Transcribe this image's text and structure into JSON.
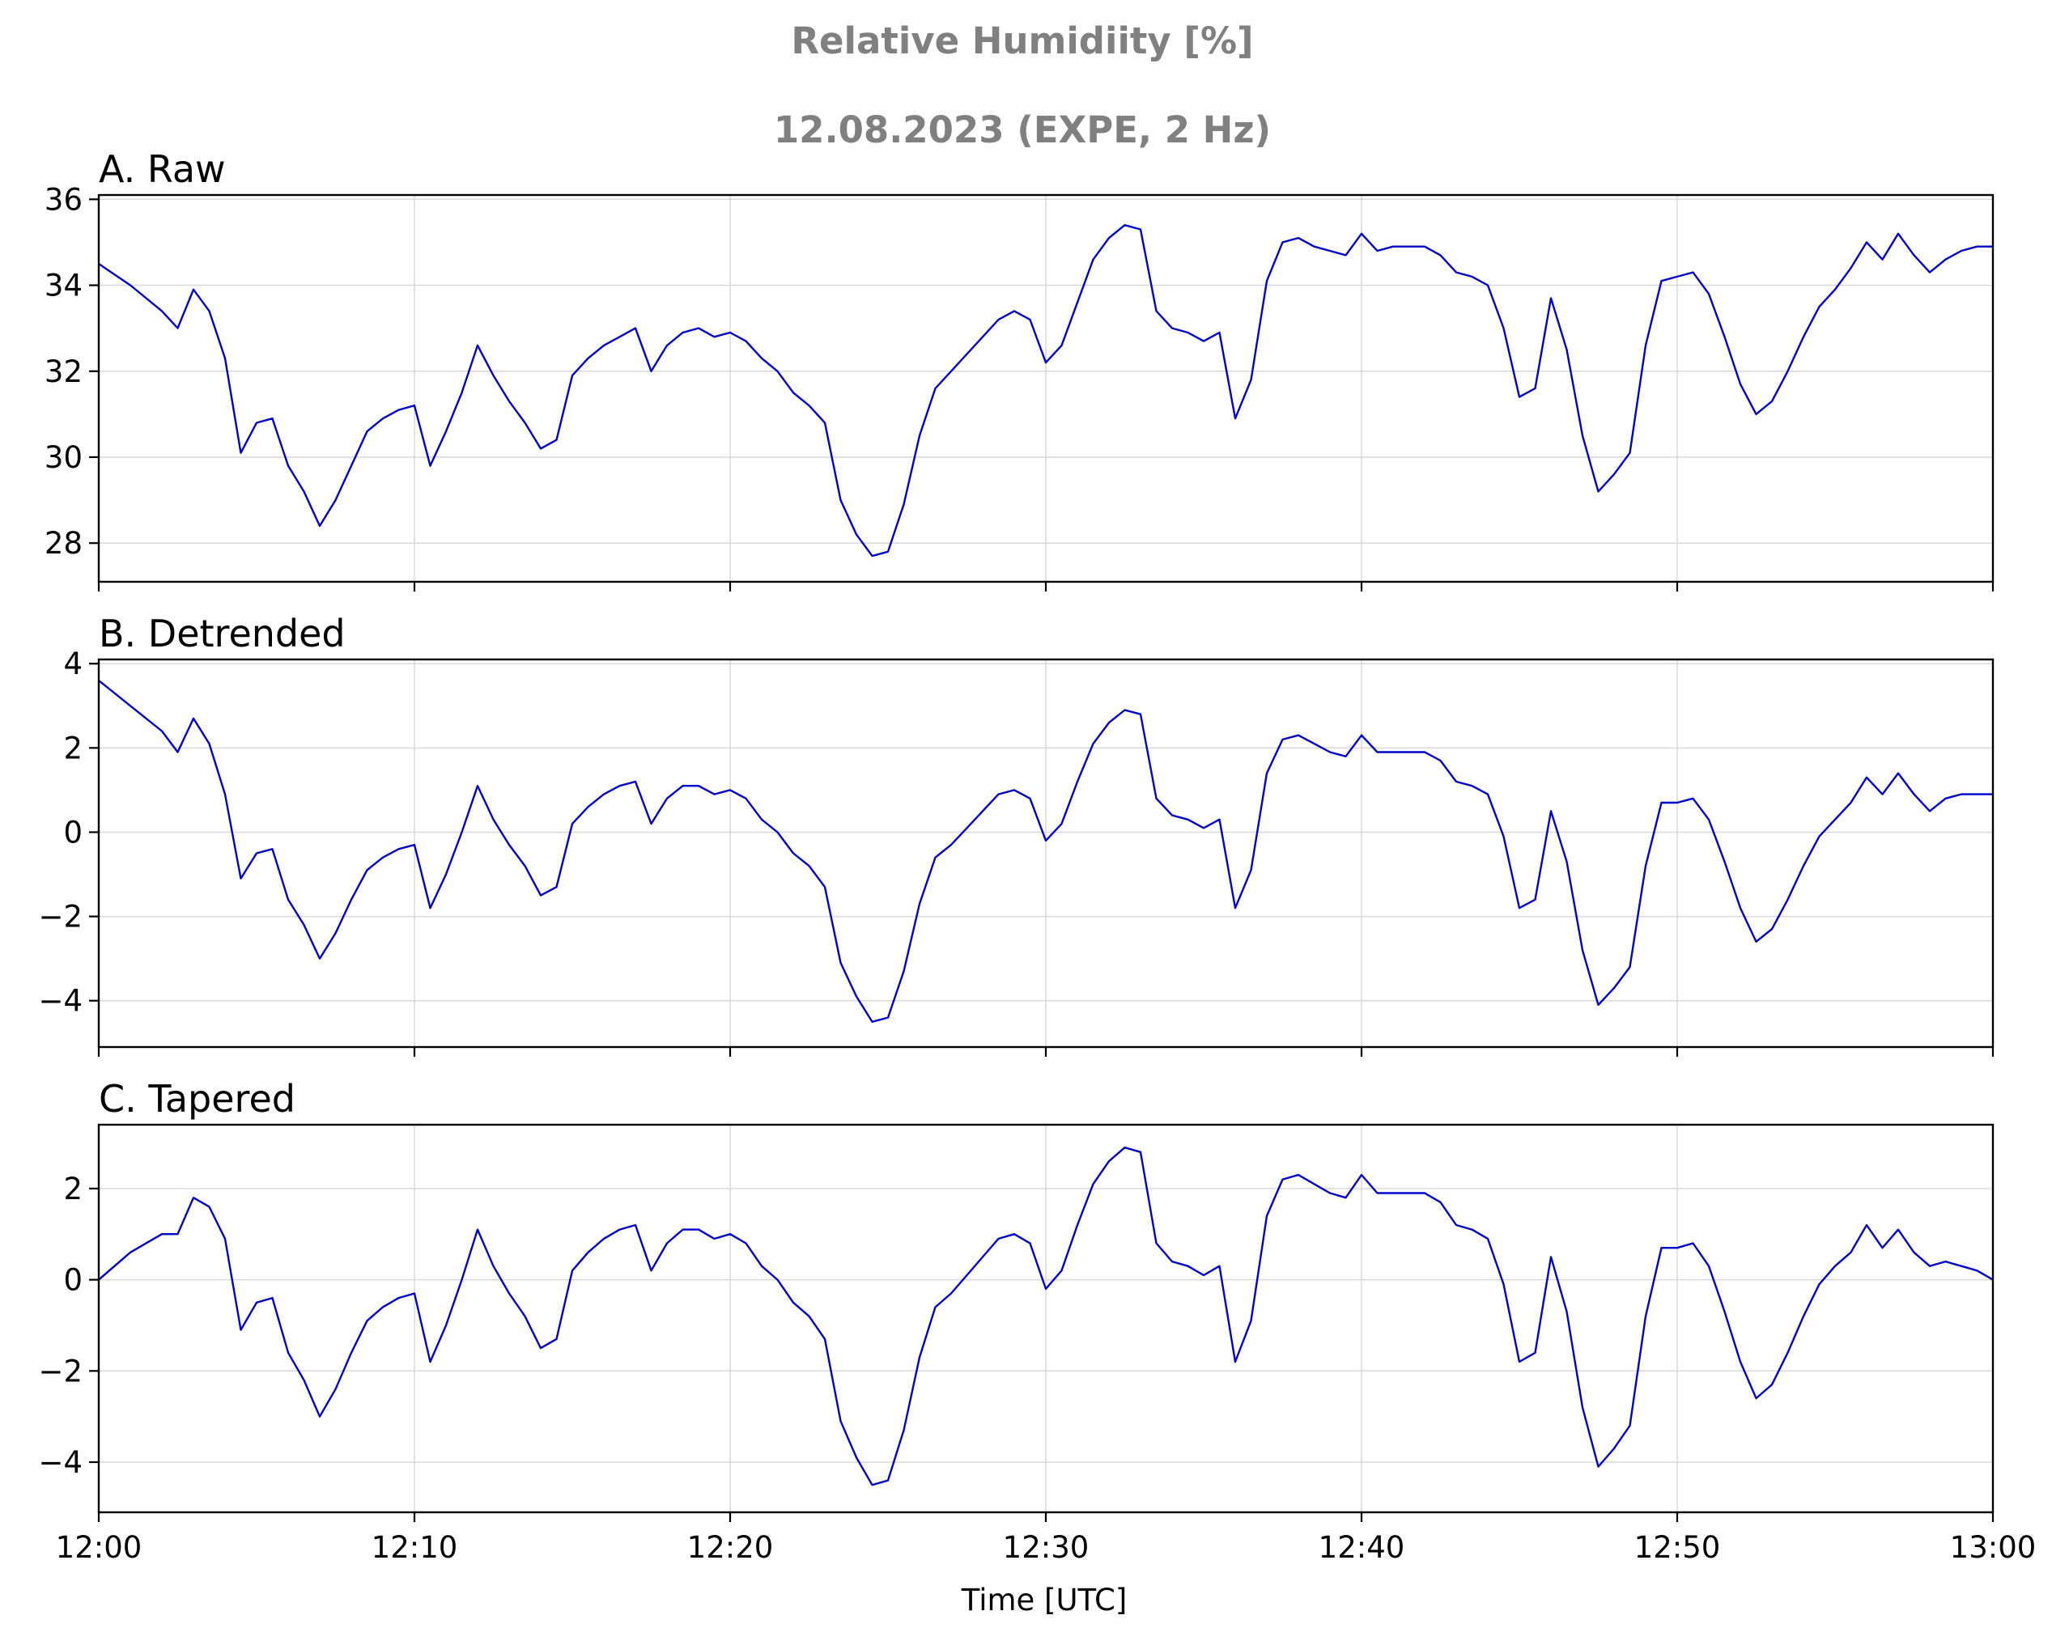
{
  "figure": {
    "title_line1": "Relative Humidiity [%]",
    "title_line2": "12.08.2023 (EXPE, 2 Hz)",
    "xlabel": "Time [UTC]",
    "line_color": "#0000cc",
    "grid_color": "#d9d9d9"
  },
  "chart_data": [
    {
      "type": "line",
      "title": "A. Raw",
      "ylim": [
        27.1,
        36.1
      ],
      "yticks": [
        28,
        30,
        32,
        34,
        36
      ],
      "xlim": [
        "12:00",
        "13:00"
      ],
      "xticks": [
        "12:00",
        "12:10",
        "12:20",
        "12:30",
        "12:40",
        "12:50",
        "13:00"
      ],
      "show_xtick_labels": false,
      "grid": true,
      "series": [
        {
          "x": [
            "12:00:00",
            "12:01:00",
            "12:02:00",
            "12:02:30",
            "12:03:00",
            "12:03:30",
            "12:04:00",
            "12:04:30",
            "12:05:00",
            "12:05:30",
            "12:06:00",
            "12:06:30",
            "12:07:00",
            "12:07:30",
            "12:08:00",
            "12:08:30",
            "12:09:00",
            "12:09:30",
            "12:10:00",
            "12:10:30",
            "12:11:00",
            "12:11:30",
            "12:12:00",
            "12:12:30",
            "12:13:00",
            "12:13:30",
            "12:14:00",
            "12:14:30",
            "12:15:00",
            "12:15:30",
            "12:16:00",
            "12:16:30",
            "12:17:00",
            "12:17:30",
            "12:18:00",
            "12:18:30",
            "12:19:00",
            "12:19:30",
            "12:20:00",
            "12:20:30",
            "12:21:00",
            "12:21:30",
            "12:22:00",
            "12:22:30",
            "12:23:00",
            "12:23:30",
            "12:24:00",
            "12:24:30",
            "12:25:00",
            "12:25:30",
            "12:26:00",
            "12:26:30",
            "12:27:00",
            "12:27:30",
            "12:28:00",
            "12:28:30",
            "12:29:00",
            "12:29:30",
            "12:30:00",
            "12:30:30",
            "12:31:00",
            "12:31:30",
            "12:32:00",
            "12:32:30",
            "12:33:00",
            "12:33:30",
            "12:34:00",
            "12:34:30",
            "12:35:00",
            "12:35:30",
            "12:36:00",
            "12:36:30",
            "12:37:00",
            "12:37:30",
            "12:38:00",
            "12:38:30",
            "12:39:00",
            "12:39:30",
            "12:40:00",
            "12:40:30",
            "12:41:00",
            "12:41:30",
            "12:42:00",
            "12:42:30",
            "12:43:00",
            "12:43:30",
            "12:44:00",
            "12:44:30",
            "12:45:00",
            "12:45:30",
            "12:46:00",
            "12:46:30",
            "12:47:00",
            "12:47:30",
            "12:48:00",
            "12:48:30",
            "12:49:00",
            "12:49:30",
            "12:50:00",
            "12:50:30",
            "12:51:00",
            "12:51:30",
            "12:52:00",
            "12:52:30",
            "12:53:00",
            "12:53:30",
            "12:54:00",
            "12:54:30",
            "12:55:00",
            "12:55:30",
            "12:56:00",
            "12:56:30",
            "12:57:00",
            "12:57:30",
            "12:58:00",
            "12:58:30",
            "12:59:00",
            "12:59:30",
            "13:00:00"
          ],
          "y": [
            34.5,
            34.0,
            33.4,
            33.0,
            33.9,
            33.4,
            32.3,
            30.1,
            30.8,
            30.9,
            29.8,
            29.2,
            28.4,
            29.0,
            29.8,
            30.6,
            30.9,
            31.1,
            31.2,
            29.8,
            30.6,
            31.5,
            32.6,
            31.9,
            31.3,
            30.8,
            30.2,
            30.4,
            31.9,
            32.3,
            32.6,
            32.8,
            33.0,
            32.0,
            32.6,
            32.9,
            33.0,
            32.8,
            32.9,
            32.7,
            32.3,
            32.0,
            31.5,
            31.2,
            30.8,
            29.0,
            28.2,
            27.7,
            27.8,
            28.9,
            30.5,
            31.6,
            32.0,
            32.4,
            32.8,
            33.2,
            33.4,
            33.2,
            32.2,
            32.6,
            33.6,
            34.6,
            35.1,
            35.4,
            35.3,
            33.4,
            33.0,
            32.9,
            32.7,
            32.9,
            30.9,
            31.8,
            34.1,
            35.0,
            35.1,
            34.9,
            34.8,
            34.7,
            35.2,
            34.8,
            34.9,
            34.9,
            34.9,
            34.7,
            34.3,
            34.2,
            34.0,
            33.0,
            31.4,
            31.6,
            33.7,
            32.5,
            30.5,
            29.2,
            29.6,
            30.1,
            32.6,
            34.1,
            34.2,
            34.3,
            33.8,
            32.8,
            31.7,
            31.0,
            31.3,
            32.0,
            32.8,
            33.5,
            33.9,
            34.4,
            35.0,
            34.6,
            35.2,
            34.7,
            34.3,
            34.6,
            34.8,
            34.9,
            34.9
          ]
        }
      ]
    },
    {
      "type": "line",
      "title": "B. Detrended",
      "ylim": [
        -5.1,
        4.1
      ],
      "yticks": [
        -4,
        -2,
        0,
        2,
        4
      ],
      "yticklabels": [
        "−4",
        "−2",
        "0",
        "2",
        "4"
      ],
      "xlim": [
        "12:00",
        "13:00"
      ],
      "xticks": [
        "12:00",
        "12:10",
        "12:20",
        "12:30",
        "12:40",
        "12:50",
        "13:00"
      ],
      "show_xtick_labels": false,
      "grid": true,
      "series": [
        {
          "x": [
            "12:00:00",
            "12:01:00",
            "12:02:00",
            "12:02:30",
            "12:03:00",
            "12:03:30",
            "12:04:00",
            "12:04:30",
            "12:05:00",
            "12:05:30",
            "12:06:00",
            "12:06:30",
            "12:07:00",
            "12:07:30",
            "12:08:00",
            "12:08:30",
            "12:09:00",
            "12:09:30",
            "12:10:00",
            "12:10:30",
            "12:11:00",
            "12:11:30",
            "12:12:00",
            "12:12:30",
            "12:13:00",
            "12:13:30",
            "12:14:00",
            "12:14:30",
            "12:15:00",
            "12:15:30",
            "12:16:00",
            "12:16:30",
            "12:17:00",
            "12:17:30",
            "12:18:00",
            "12:18:30",
            "12:19:00",
            "12:19:30",
            "12:20:00",
            "12:20:30",
            "12:21:00",
            "12:21:30",
            "12:22:00",
            "12:22:30",
            "12:23:00",
            "12:23:30",
            "12:24:00",
            "12:24:30",
            "12:25:00",
            "12:25:30",
            "12:26:00",
            "12:26:30",
            "12:27:00",
            "12:27:30",
            "12:28:00",
            "12:28:30",
            "12:29:00",
            "12:29:30",
            "12:30:00",
            "12:30:30",
            "12:31:00",
            "12:31:30",
            "12:32:00",
            "12:32:30",
            "12:33:00",
            "12:33:30",
            "12:34:00",
            "12:34:30",
            "12:35:00",
            "12:35:30",
            "12:36:00",
            "12:36:30",
            "12:37:00",
            "12:37:30",
            "12:38:00",
            "12:38:30",
            "12:39:00",
            "12:39:30",
            "12:40:00",
            "12:40:30",
            "12:41:00",
            "12:41:30",
            "12:42:00",
            "12:42:30",
            "12:43:00",
            "12:43:30",
            "12:44:00",
            "12:44:30",
            "12:45:00",
            "12:45:30",
            "12:46:00",
            "12:46:30",
            "12:47:00",
            "12:47:30",
            "12:48:00",
            "12:48:30",
            "12:49:00",
            "12:49:30",
            "12:50:00",
            "12:50:30",
            "12:51:00",
            "12:51:30",
            "12:52:00",
            "12:52:30",
            "12:53:00",
            "12:53:30",
            "12:54:00",
            "12:54:30",
            "12:55:00",
            "12:55:30",
            "12:56:00",
            "12:56:30",
            "12:57:00",
            "12:57:30",
            "12:58:00",
            "12:58:30",
            "12:59:00",
            "12:59:30",
            "13:00:00"
          ],
          "y": [
            3.6,
            3.0,
            2.4,
            1.9,
            2.7,
            2.1,
            0.9,
            -1.1,
            -0.5,
            -0.4,
            -1.6,
            -2.2,
            -3.0,
            -2.4,
            -1.6,
            -0.9,
            -0.6,
            -0.4,
            -0.3,
            -1.8,
            -1.0,
            0.0,
            1.1,
            0.3,
            -0.3,
            -0.8,
            -1.5,
            -1.3,
            0.2,
            0.6,
            0.9,
            1.1,
            1.2,
            0.2,
            0.8,
            1.1,
            1.1,
            0.9,
            1.0,
            0.8,
            0.3,
            0.0,
            -0.5,
            -0.8,
            -1.3,
            -3.1,
            -3.9,
            -4.5,
            -4.4,
            -3.3,
            -1.7,
            -0.6,
            -0.3,
            0.1,
            0.5,
            0.9,
            1.0,
            0.8,
            -0.2,
            0.2,
            1.2,
            2.1,
            2.6,
            2.9,
            2.8,
            0.8,
            0.4,
            0.3,
            0.1,
            0.3,
            -1.8,
            -0.9,
            1.4,
            2.2,
            2.3,
            2.1,
            1.9,
            1.8,
            2.3,
            1.9,
            1.9,
            1.9,
            1.9,
            1.7,
            1.2,
            1.1,
            0.9,
            -0.1,
            -1.8,
            -1.6,
            0.5,
            -0.7,
            -2.8,
            -4.1,
            -3.7,
            -3.2,
            -0.8,
            0.7,
            0.7,
            0.8,
            0.3,
            -0.7,
            -1.8,
            -2.6,
            -2.3,
            -1.6,
            -0.8,
            -0.1,
            0.3,
            0.7,
            1.3,
            0.9,
            1.4,
            0.9,
            0.5,
            0.8,
            0.9,
            0.9,
            0.9
          ]
        }
      ]
    },
    {
      "type": "line",
      "title": "C. Tapered",
      "ylim": [
        -5.1,
        3.4
      ],
      "yticks": [
        -4,
        -2,
        0,
        2
      ],
      "yticklabels": [
        "−4",
        "−2",
        "0",
        "2"
      ],
      "xlim": [
        "12:00",
        "13:00"
      ],
      "xticks": [
        "12:00",
        "12:10",
        "12:20",
        "12:30",
        "12:40",
        "12:50",
        "13:00"
      ],
      "show_xtick_labels": true,
      "grid": true,
      "series": [
        {
          "x": [
            "12:00:00",
            "12:01:00",
            "12:02:00",
            "12:02:30",
            "12:03:00",
            "12:03:30",
            "12:04:00",
            "12:04:30",
            "12:05:00",
            "12:05:30",
            "12:06:00",
            "12:06:30",
            "12:07:00",
            "12:07:30",
            "12:08:00",
            "12:08:30",
            "12:09:00",
            "12:09:30",
            "12:10:00",
            "12:10:30",
            "12:11:00",
            "12:11:30",
            "12:12:00",
            "12:12:30",
            "12:13:00",
            "12:13:30",
            "12:14:00",
            "12:14:30",
            "12:15:00",
            "12:15:30",
            "12:16:00",
            "12:16:30",
            "12:17:00",
            "12:17:30",
            "12:18:00",
            "12:18:30",
            "12:19:00",
            "12:19:30",
            "12:20:00",
            "12:20:30",
            "12:21:00",
            "12:21:30",
            "12:22:00",
            "12:22:30",
            "12:23:00",
            "12:23:30",
            "12:24:00",
            "12:24:30",
            "12:25:00",
            "12:25:30",
            "12:26:00",
            "12:26:30",
            "12:27:00",
            "12:27:30",
            "12:28:00",
            "12:28:30",
            "12:29:00",
            "12:29:30",
            "12:30:00",
            "12:30:30",
            "12:31:00",
            "12:31:30",
            "12:32:00",
            "12:32:30",
            "12:33:00",
            "12:33:30",
            "12:34:00",
            "12:34:30",
            "12:35:00",
            "12:35:30",
            "12:36:00",
            "12:36:30",
            "12:37:00",
            "12:37:30",
            "12:38:00",
            "12:38:30",
            "12:39:00",
            "12:39:30",
            "12:40:00",
            "12:40:30",
            "12:41:00",
            "12:41:30",
            "12:42:00",
            "12:42:30",
            "12:43:00",
            "12:43:30",
            "12:44:00",
            "12:44:30",
            "12:45:00",
            "12:45:30",
            "12:46:00",
            "12:46:30",
            "12:47:00",
            "12:47:30",
            "12:48:00",
            "12:48:30",
            "12:49:00",
            "12:49:30",
            "12:50:00",
            "12:50:30",
            "12:51:00",
            "12:51:30",
            "12:52:00",
            "12:52:30",
            "12:53:00",
            "12:53:30",
            "12:54:00",
            "12:54:30",
            "12:55:00",
            "12:55:30",
            "12:56:00",
            "12:56:30",
            "12:57:00",
            "12:57:30",
            "12:58:00",
            "12:58:30",
            "12:59:00",
            "12:59:30",
            "13:00:00"
          ],
          "y": [
            0.0,
            0.6,
            1.0,
            1.0,
            1.8,
            1.6,
            0.9,
            -1.1,
            -0.5,
            -0.4,
            -1.6,
            -2.2,
            -3.0,
            -2.4,
            -1.6,
            -0.9,
            -0.6,
            -0.4,
            -0.3,
            -1.8,
            -1.0,
            0.0,
            1.1,
            0.3,
            -0.3,
            -0.8,
            -1.5,
            -1.3,
            0.2,
            0.6,
            0.9,
            1.1,
            1.2,
            0.2,
            0.8,
            1.1,
            1.1,
            0.9,
            1.0,
            0.8,
            0.3,
            0.0,
            -0.5,
            -0.8,
            -1.3,
            -3.1,
            -3.9,
            -4.5,
            -4.4,
            -3.3,
            -1.7,
            -0.6,
            -0.3,
            0.1,
            0.5,
            0.9,
            1.0,
            0.8,
            -0.2,
            0.2,
            1.2,
            2.1,
            2.6,
            2.9,
            2.8,
            0.8,
            0.4,
            0.3,
            0.1,
            0.3,
            -1.8,
            -0.9,
            1.4,
            2.2,
            2.3,
            2.1,
            1.9,
            1.8,
            2.3,
            1.9,
            1.9,
            1.9,
            1.9,
            1.7,
            1.2,
            1.1,
            0.9,
            -0.1,
            -1.8,
            -1.6,
            0.5,
            -0.7,
            -2.8,
            -4.1,
            -3.7,
            -3.2,
            -0.8,
            0.7,
            0.7,
            0.8,
            0.3,
            -0.7,
            -1.8,
            -2.6,
            -2.3,
            -1.6,
            -0.8,
            -0.1,
            0.3,
            0.6,
            1.2,
            0.7,
            1.1,
            0.6,
            0.3,
            0.4,
            0.3,
            0.2,
            0.0
          ]
        }
      ]
    }
  ]
}
